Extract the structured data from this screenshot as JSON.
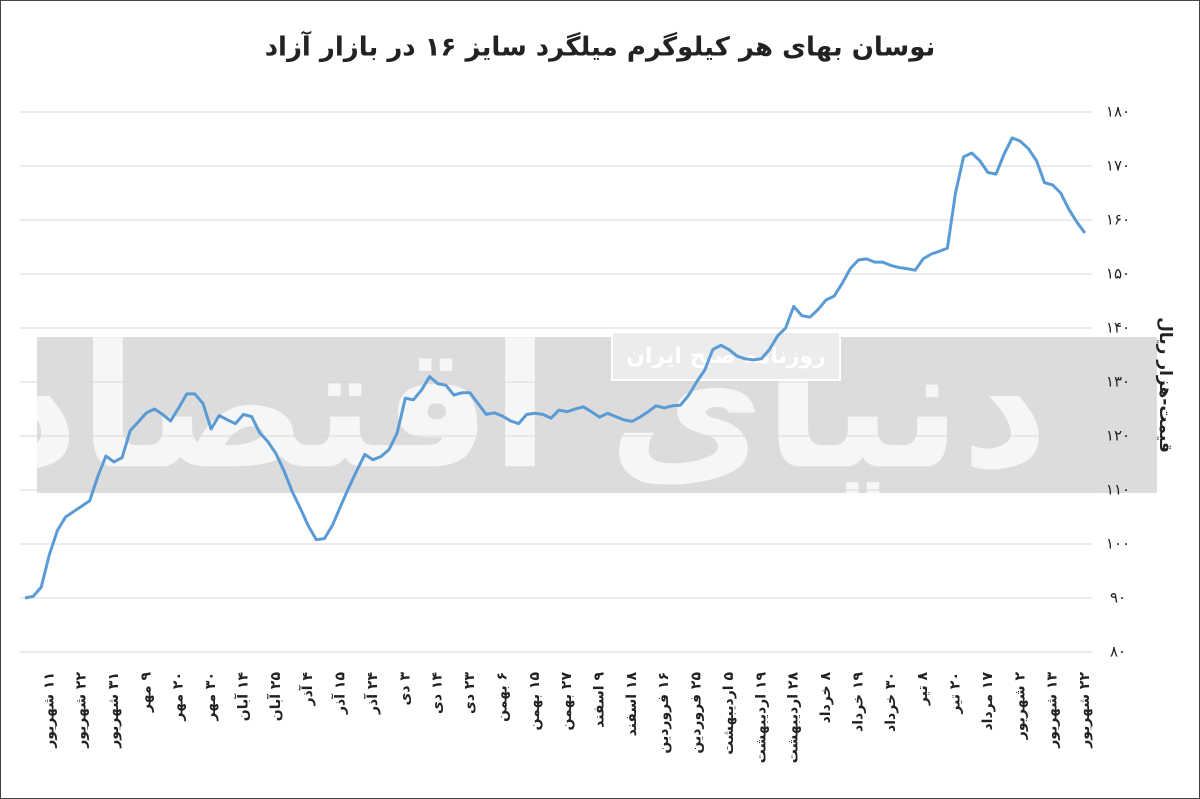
{
  "chart_data": {
    "type": "line",
    "title": "نوسان بهای هر کیلوگرم میلگرد سایز ۱۶ در بازار آزاد",
    "y_label": "قیمت-هزار ریال",
    "watermark": "دنیای اقتصاد",
    "watermark_caption": "روزنامه صبح ایران",
    "categories": [
      null,
      null,
      null,
      "۱۱ شهریور",
      null,
      null,
      null,
      "۲۲ شهریور",
      null,
      null,
      null,
      "۳۱ شهریور",
      null,
      null,
      null,
      "۹ مهر",
      null,
      null,
      null,
      "۲۰ مهر",
      null,
      null,
      null,
      "۳۰ مهر",
      null,
      null,
      null,
      "۱۴ آبان",
      null,
      null,
      null,
      "۲۵ آبان",
      null,
      null,
      null,
      "۴ آذر",
      null,
      null,
      null,
      "۱۵ آذر",
      null,
      null,
      null,
      "۲۴ آذر",
      null,
      null,
      null,
      "۳ دی",
      null,
      null,
      null,
      "۱۴ دی",
      null,
      null,
      null,
      "۲۳ دی",
      null,
      null,
      null,
      "۶ بهمن",
      null,
      null,
      null,
      "۱۵ بهمن",
      null,
      null,
      null,
      "۲۷ بهمن",
      null,
      null,
      null,
      "۹ اسفند",
      null,
      null,
      null,
      "۱۸ اسفند",
      null,
      null,
      null,
      "۱۶ فروردین",
      null,
      null,
      null,
      "۲۵ فروردین",
      null,
      null,
      null,
      "۵ اردیبهشت",
      null,
      null,
      null,
      "۱۹ اردیبهشت",
      null,
      null,
      null,
      "۲۸ اردیبهشت",
      null,
      null,
      null,
      "۸ خرداد",
      null,
      null,
      null,
      "۱۹ خرداد",
      null,
      null,
      null,
      "۳۰ خرداد",
      null,
      null,
      null,
      "۸ تیر",
      null,
      null,
      null,
      "۲۰ تیر",
      null,
      null,
      null,
      "۱۷ مرداد",
      null,
      null,
      null,
      "۲ شهریور",
      null,
      null,
      null,
      "۱۳ شهریور",
      null,
      null,
      null,
      "۲۲ شهریور"
    ],
    "values": [
      90,
      90.3,
      92,
      98,
      102.5,
      105,
      106,
      107,
      108,
      112.5,
      116.3,
      115.2,
      116,
      121,
      122.6,
      124.3,
      125,
      124,
      122.8,
      125.2,
      127.8,
      127.8,
      126,
      121.3,
      123.8,
      123,
      122.3,
      124,
      123.6,
      120.6,
      119,
      116.8,
      113.6,
      109.8,
      106.7,
      103.4,
      100.8,
      101,
      103.5,
      107,
      110.4,
      113.6,
      116.6,
      115.6,
      116.2,
      117.5,
      120.6,
      127,
      126.7,
      128.5,
      131,
      129.7,
      129.4,
      127.6,
      128,
      128,
      126,
      124,
      124.3,
      123.7,
      122.8,
      122.3,
      124,
      124.2,
      124,
      123.3,
      124.8,
      124.5,
      125,
      125.4,
      124.5,
      123.5,
      124.2,
      123.6,
      123,
      122.7,
      123.5,
      124.5,
      125.6,
      125.2,
      125.6,
      125.7,
      127.5,
      130,
      132.2,
      136,
      136.8,
      136,
      134.8,
      134.3,
      134.1,
      134.3,
      136,
      138.5,
      140,
      144,
      142.3,
      142,
      143.4,
      145.2,
      145.9,
      148.3,
      151,
      152.6,
      152.8,
      152.2,
      152.2,
      151.6,
      151.2,
      151,
      150.7,
      152.8,
      153.7,
      154.2,
      154.8,
      165,
      171.7,
      172.4,
      171,
      168.8,
      168.5,
      172.2,
      175.2,
      174.6,
      173.2,
      171,
      166.9,
      166.5,
      165,
      162,
      159.6,
      157.6
    ],
    "color": "#5b9bd5",
    "ylim": [
      80,
      180
    ],
    "yticks": [
      {
        "value": 80,
        "label": "۸۰"
      },
      {
        "value": 90,
        "label": "۹۰"
      },
      {
        "value": 100,
        "label": "۱۰۰"
      },
      {
        "value": 110,
        "label": "۱۱۰"
      },
      {
        "value": 120,
        "label": "۱۲۰"
      },
      {
        "value": 130,
        "label": "۱۳۰"
      },
      {
        "value": 140,
        "label": "۱۴۰"
      },
      {
        "value": 150,
        "label": "۱۵۰"
      },
      {
        "value": 160,
        "label": "۱۶۰"
      },
      {
        "value": 170,
        "label": "۱۷۰"
      },
      {
        "value": 180,
        "label": "۱۸۰"
      }
    ],
    "grid": true
  }
}
